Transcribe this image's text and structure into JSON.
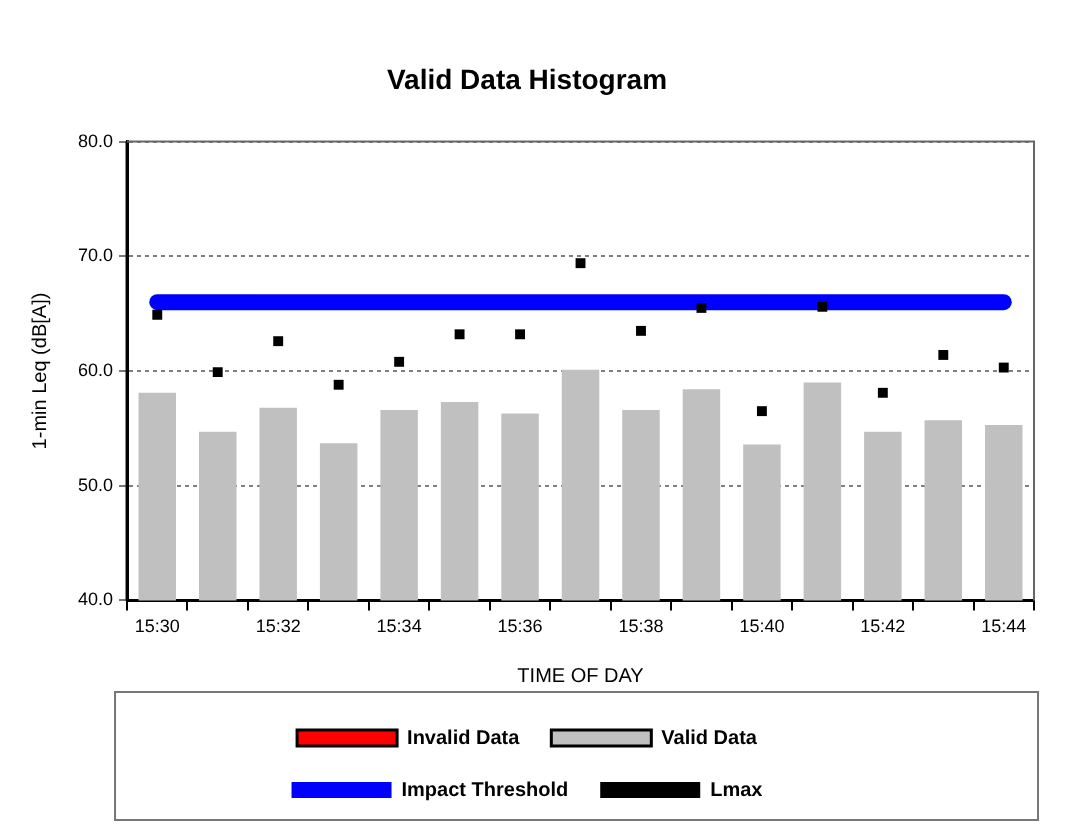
{
  "chart_data": {
    "type": "bar",
    "title": "Valid Data Histogram",
    "xlabel": "TIME OF DAY",
    "ylabel": "1-min Leq (dB[A])",
    "categories": [
      "15:30",
      null,
      "15:32",
      null,
      "15:34",
      null,
      "15:36",
      null,
      "15:38",
      null,
      "15:40",
      null,
      "15:42",
      null,
      "15:44"
    ],
    "series": [
      {
        "name": "Invalid Data",
        "type": "bar",
        "color": "#ff0000",
        "values": [
          null,
          null,
          null,
          null,
          null,
          null,
          null,
          null,
          null,
          null,
          null,
          null,
          null,
          null,
          null
        ]
      },
      {
        "name": "Valid Data",
        "type": "bar",
        "color": "#c0c0c0",
        "values": [
          58.1,
          54.7,
          56.8,
          53.7,
          56.6,
          57.3,
          56.3,
          60.1,
          56.6,
          58.4,
          53.6,
          59.0,
          54.7,
          55.7,
          55.3
        ]
      },
      {
        "name": "Impact Threshold",
        "type": "line",
        "color": "#0000ff",
        "values": [
          66,
          66,
          66,
          66,
          66,
          66,
          66,
          66,
          66,
          66,
          66,
          66,
          66,
          66,
          66
        ]
      },
      {
        "name": "Lmax",
        "type": "scatter",
        "color": "#000000",
        "marker": "square",
        "values": [
          64.9,
          59.9,
          62.6,
          58.8,
          60.8,
          63.2,
          63.2,
          69.4,
          63.5,
          65.5,
          56.5,
          65.6,
          58.1,
          61.4,
          60.3
        ]
      }
    ],
    "ylim": [
      40,
      80
    ],
    "yticks": [
      {
        "value": 40,
        "label": "40.0"
      },
      {
        "value": 50,
        "label": "50.0"
      },
      {
        "value": 60,
        "label": "60.0"
      },
      {
        "value": 70,
        "label": "70.0"
      },
      {
        "value": 80,
        "label": "80.0"
      }
    ],
    "grid": "y",
    "legend": "bottom"
  }
}
